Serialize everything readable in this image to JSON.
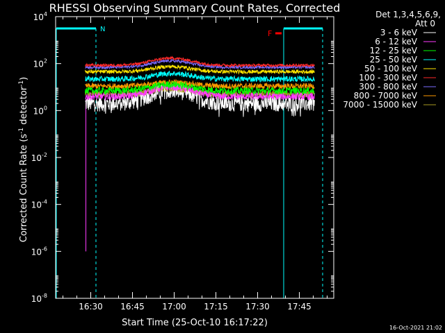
{
  "chart_data": {
    "type": "line",
    "title": "RHESSI Observing Summary Count Rates, Corrected",
    "xlabel": "Start Time (25-Oct-10 16:17:22)",
    "ylabel_main": "Corrected Count Rate (s",
    "ylabel_sup1": "-1",
    "ylabel_mid": " detector",
    "ylabel_sup2": "-1",
    "ylabel_end": ")",
    "timestamp": "16-Oct-2021 21:02",
    "x_ticks": [
      "16:30",
      "16:45",
      "17:00",
      "17:15",
      "17:30",
      "17:45"
    ],
    "x_tick_minutes": [
      990,
      1005,
      1020,
      1035,
      1050,
      1065
    ],
    "xlim_minutes": [
      977.37,
      1077.37
    ],
    "y_scale": "log",
    "ylim_exp": [
      -8,
      4
    ],
    "y_tick_exps": [
      4,
      2,
      0,
      -2,
      -4,
      -6,
      -8
    ],
    "y_tick_base": "10",
    "y_tick_labels": [
      "4",
      "2",
      "0",
      "-2",
      "-4",
      "-6",
      "-8"
    ],
    "legend_header": [
      "Det 1,3,4,5,6,9,",
      "Att 0"
    ],
    "series": [
      {
        "name": "3 - 6 keV",
        "color": "#ffffff",
        "level": 2.0,
        "peak": 7,
        "noise": 0.35
      },
      {
        "name": "6 - 12 keV",
        "color": "#ff3cff",
        "level": 4.0,
        "peak": 10,
        "noise": 0.15
      },
      {
        "name": "12 - 25 keV",
        "color": "#00ff00",
        "level": 7.0,
        "peak": 13,
        "noise": 0.15
      },
      {
        "name": "25 - 50 keV",
        "color": "#00ffff",
        "level": 22.0,
        "peak": 38,
        "noise": 0.12
      },
      {
        "name": "50 - 100 keV",
        "color": "#ffe600",
        "level": 45.0,
        "peak": 75,
        "noise": 0.08
      },
      {
        "name": "100 - 300 keV",
        "color": "#ff2a2a",
        "level": 85.0,
        "peak": 170,
        "noise": 0.06
      },
      {
        "name": "300 - 800 keV",
        "color": "#7a6cff",
        "level": 70.0,
        "peak": 130,
        "noise": 0.06
      },
      {
        "name": "800 - 7000 keV",
        "color": "#ff9a00",
        "level": 11.0,
        "peak": 16,
        "noise": 0.12
      },
      {
        "name": "7000 - 15000 keV",
        "color": "#a89a22",
        "level": 5.0,
        "peak": 9,
        "noise": 0.15
      }
    ],
    "data_start_minute": 988.0,
    "data_end_minute": 1070.5,
    "peak_minute": 1019.0,
    "annotations": [
      {
        "label": "N",
        "color": "#00ffff"
      },
      {
        "label": "F",
        "color": "#ff0000"
      }
    ]
  }
}
